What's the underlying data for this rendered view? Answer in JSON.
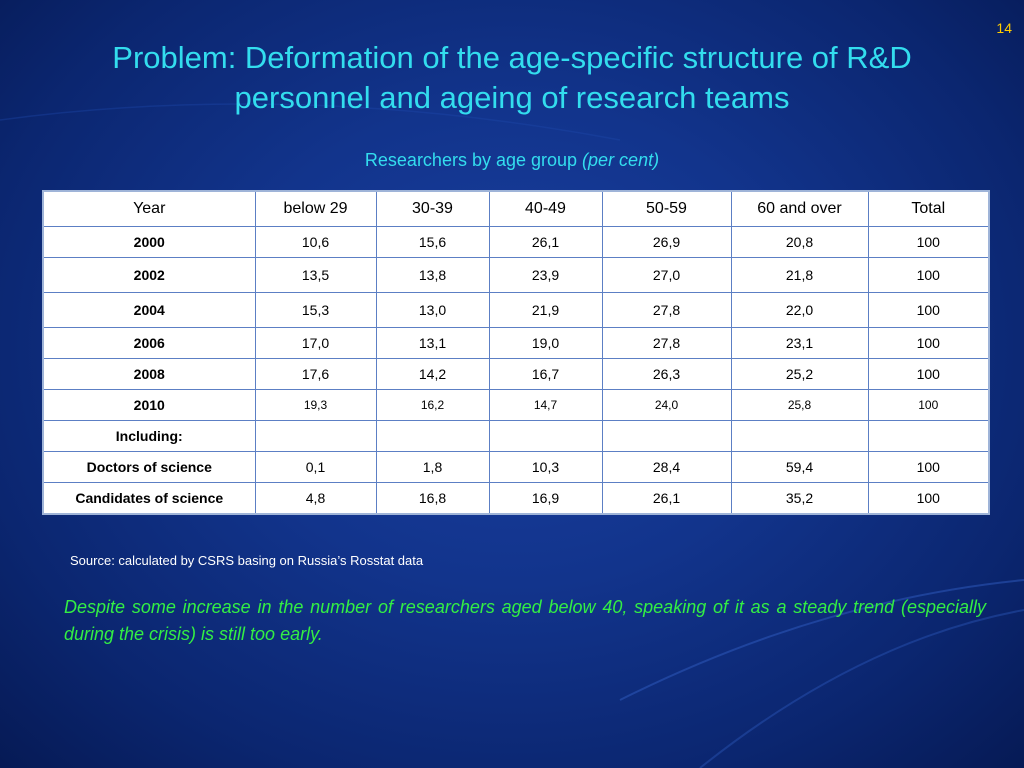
{
  "slide": {
    "page_number": "14",
    "title_line1": "Problem: Deformation of the age-specific structure of R&D",
    "title_line2": "personnel and ageing of research teams",
    "caption": "Researchers by age group",
    "caption_italic": "(per cent)",
    "source": "Source: calculated by CSRS basing on Russia’s Rosstat data",
    "note": "Despite some increase in the number of researchers aged below 40, speaking of it as a steady trend (especially during the crisis) is still too early."
  },
  "table": {
    "headers": [
      "Year",
      "below 29",
      "30-39",
      "40-49",
      "50-59",
      "60 and over",
      "Total"
    ],
    "rows": [
      {
        "label": "2000",
        "values": [
          "10,6",
          "15,6",
          "26,1",
          "26,9",
          "20,8",
          "100"
        ]
      },
      {
        "label": "2002",
        "values": [
          "13,5",
          "13,8",
          "23,9",
          "27,0",
          "21,8",
          "100"
        ]
      },
      {
        "label": "2004",
        "values": [
          "15,3",
          "13,0",
          "21,9",
          "27,8",
          "22,0",
          "100"
        ]
      },
      {
        "label": "2006",
        "values": [
          "17,0",
          "13,1",
          "19,0",
          "27,8",
          "23,1",
          "100"
        ]
      },
      {
        "label": "2008",
        "values": [
          "17,6",
          "14,2",
          "16,7",
          "26,3",
          "25,2",
          "100"
        ]
      },
      {
        "label": "2010",
        "values": [
          "19,3",
          "16,2",
          "14,7",
          "24,0",
          "25,8",
          "100"
        ]
      },
      {
        "label": "Including:",
        "values": [
          "",
          "",
          "",
          "",
          "",
          ""
        ]
      },
      {
        "label": "Doctors of science",
        "values": [
          "0,1",
          "1,8",
          "10,3",
          "28,4",
          "59,4",
          "100"
        ]
      },
      {
        "label": "Candidates of science",
        "values": [
          "4,8",
          "16,8",
          "16,9",
          "26,1",
          "35,2",
          "100"
        ]
      }
    ]
  }
}
